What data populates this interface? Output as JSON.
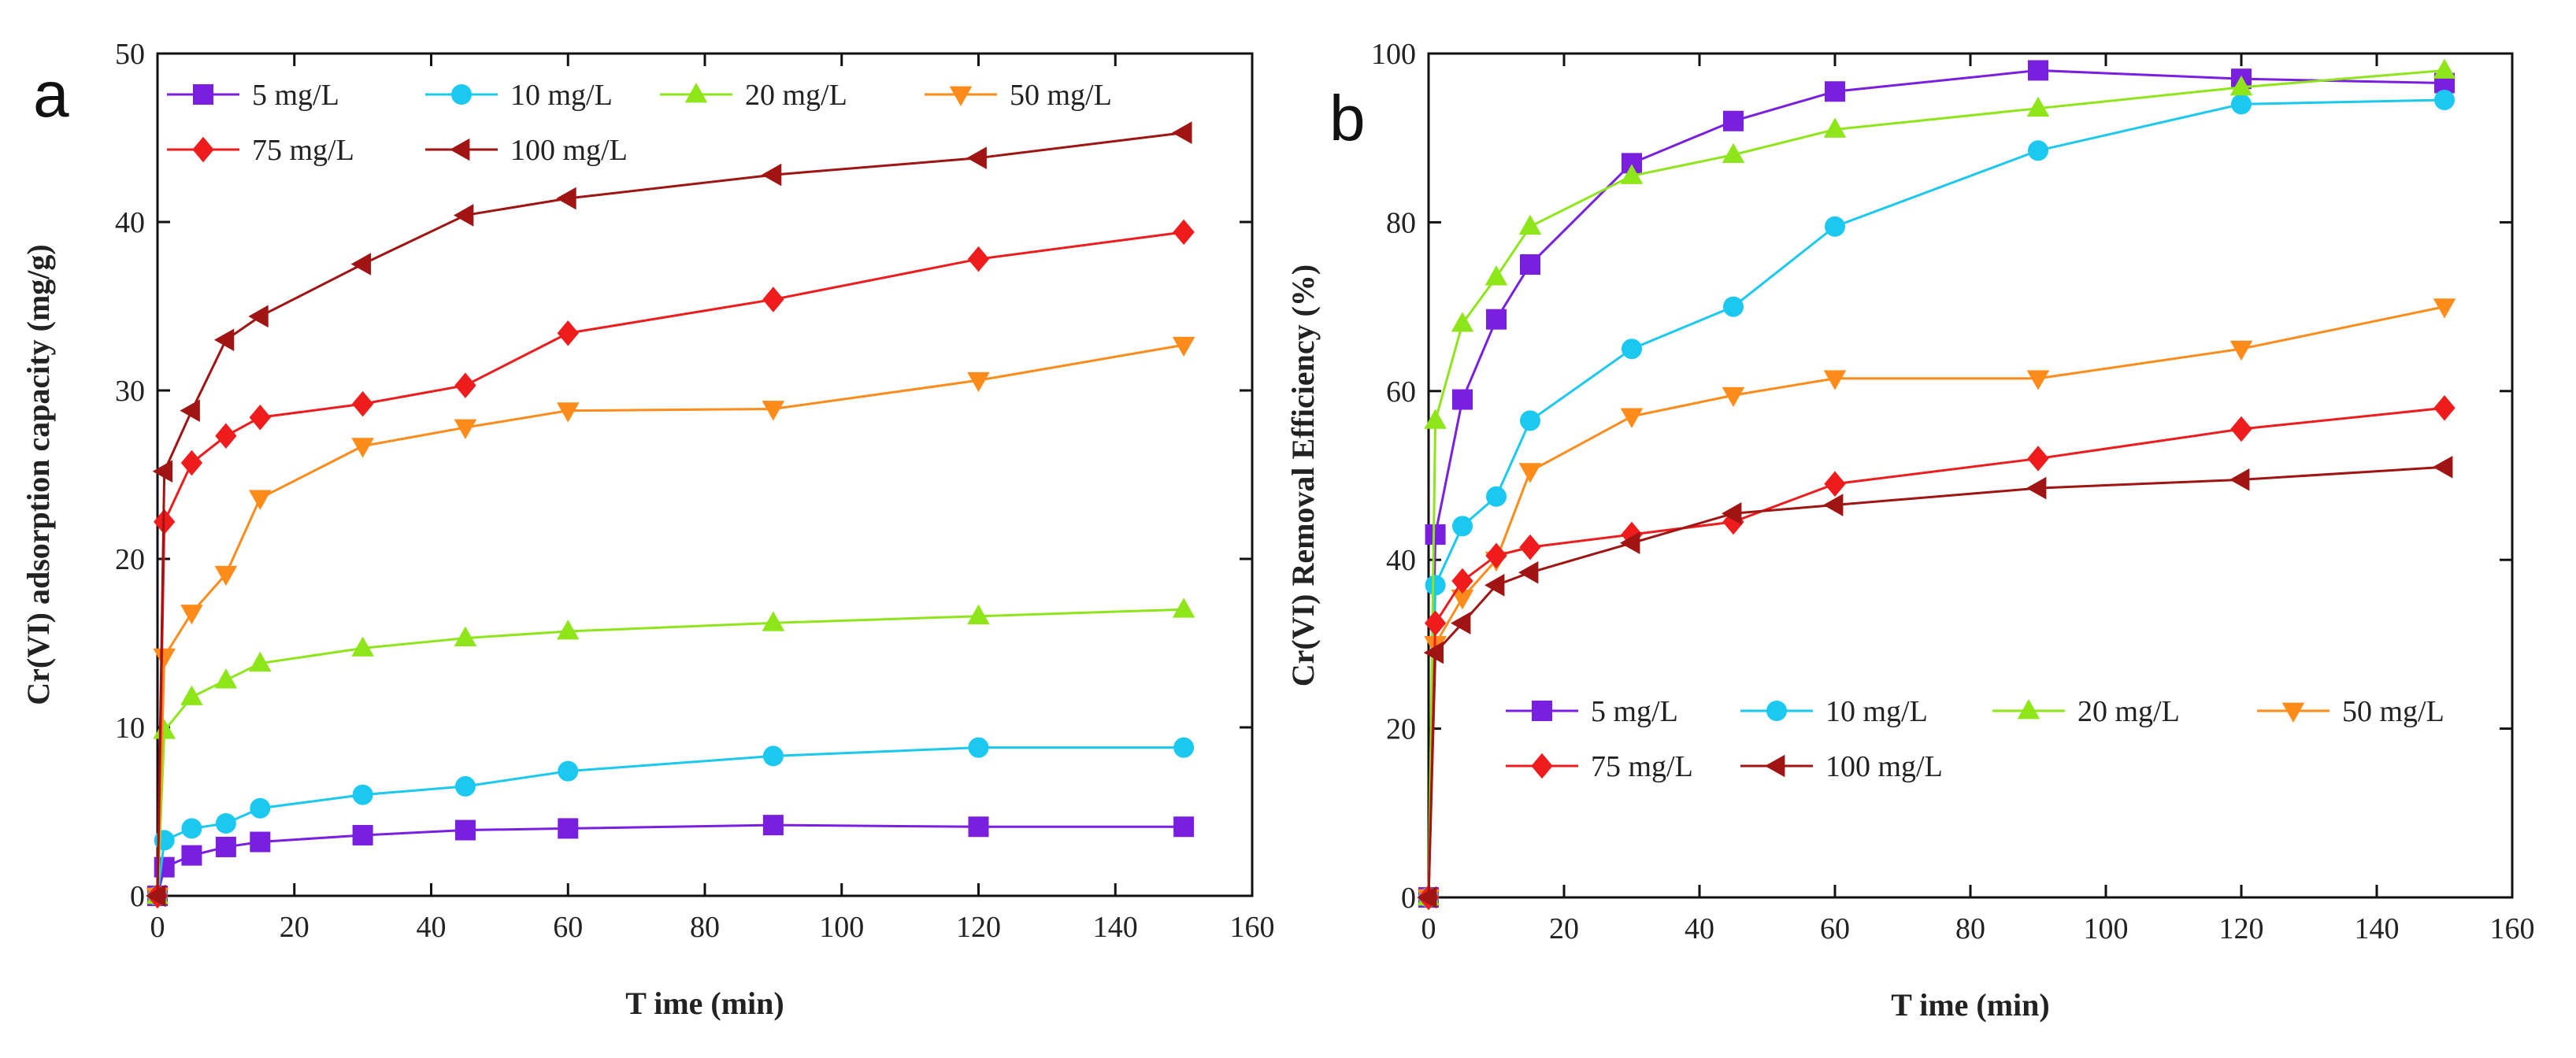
{
  "figure": {
    "panels": [
      "a",
      "b"
    ]
  },
  "colors": {
    "5 mg/L": "#7a1fe0",
    "10 mg/L": "#1ac8f0",
    "20 mg/L": "#8ee61a",
    "50 mg/L": "#ff8c1a",
    "75 mg/L": "#ee1c1c",
    "100 mg/L": "#a01414"
  },
  "markers": {
    "5 mg/L": "square",
    "10 mg/L": "circle",
    "20 mg/L": "triangle-up",
    "50 mg/L": "triangle-down",
    "75 mg/L": "diamond",
    "100 mg/L": "triangle-left"
  },
  "chart_data": [
    {
      "panel": "a",
      "type": "line",
      "xlabel": "T ime (min)",
      "ylabel": "Cr(VI) adsorption capacity (mg/g)",
      "xlim": [
        0,
        160
      ],
      "ylim": [
        0,
        50
      ],
      "xticks": [
        0,
        20,
        40,
        60,
        80,
        100,
        120,
        140,
        160
      ],
      "yticks": [
        0,
        10,
        20,
        30,
        40,
        50
      ],
      "legend_position": "top-left",
      "x": [
        0,
        1,
        5,
        10,
        15,
        30,
        45,
        60,
        90,
        120,
        150
      ],
      "series": [
        {
          "name": "5 mg/L",
          "values": [
            0,
            1.7,
            2.4,
            2.9,
            3.2,
            3.6,
            3.9,
            4.0,
            4.2,
            4.1,
            4.1
          ]
        },
        {
          "name": "10 mg/L",
          "values": [
            0,
            3.3,
            4.0,
            4.3,
            5.2,
            6.0,
            6.5,
            7.4,
            8.3,
            8.8,
            8.8
          ]
        },
        {
          "name": "20 mg/L",
          "values": [
            0,
            9.8,
            11.8,
            12.8,
            13.8,
            14.7,
            15.3,
            15.7,
            16.2,
            16.6,
            17.0
          ]
        },
        {
          "name": "50 mg/L",
          "values": [
            0,
            14.2,
            16.8,
            19.1,
            23.6,
            26.7,
            27.8,
            28.8,
            28.9,
            30.6,
            32.7
          ]
        },
        {
          "name": "75 mg/L",
          "values": [
            0,
            22.2,
            25.7,
            27.3,
            28.4,
            29.2,
            30.3,
            33.4,
            35.4,
            37.8,
            39.4
          ]
        },
        {
          "name": "100 mg/L",
          "values": [
            0,
            25.2,
            28.8,
            33.0,
            34.4,
            37.5,
            40.4,
            41.4,
            42.8,
            43.8,
            45.3
          ]
        }
      ]
    },
    {
      "panel": "b",
      "type": "line",
      "xlabel": "T ime (min)",
      "ylabel": "Cr(VI) Removal Efficiency (%)",
      "xlim": [
        0,
        160
      ],
      "ylim": [
        0,
        100
      ],
      "xticks": [
        0,
        20,
        40,
        60,
        80,
        100,
        120,
        140,
        160
      ],
      "yticks": [
        0,
        20,
        40,
        60,
        80,
        100
      ],
      "legend_position": "bottom-right",
      "x": [
        0,
        1,
        5,
        10,
        15,
        30,
        45,
        60,
        90,
        120,
        150
      ],
      "series": [
        {
          "name": "5 mg/L",
          "values": [
            0,
            43,
            59,
            68.5,
            75,
            87,
            92,
            95.5,
            98,
            97,
            96.5
          ]
        },
        {
          "name": "10 mg/L",
          "values": [
            0,
            37,
            44,
            47.5,
            56.5,
            65,
            70,
            79.5,
            88.5,
            94,
            94.5
          ]
        },
        {
          "name": "20 mg/L",
          "values": [
            0,
            56.5,
            68,
            73.5,
            79.5,
            85.5,
            88,
            91,
            93.5,
            96,
            98
          ]
        },
        {
          "name": "50 mg/L",
          "values": [
            0,
            30,
            35.5,
            40,
            50.5,
            57,
            59.5,
            61.5,
            61.5,
            65,
            70
          ]
        },
        {
          "name": "75 mg/L",
          "values": [
            0,
            32.5,
            37.5,
            40.5,
            41.5,
            43,
            44.5,
            49,
            52,
            55.5,
            58
          ]
        },
        {
          "name": "100 mg/L",
          "values": [
            0,
            29,
            32.5,
            37,
            38.5,
            42,
            45.5,
            46.5,
            48.5,
            49.5,
            51
          ]
        }
      ]
    }
  ]
}
